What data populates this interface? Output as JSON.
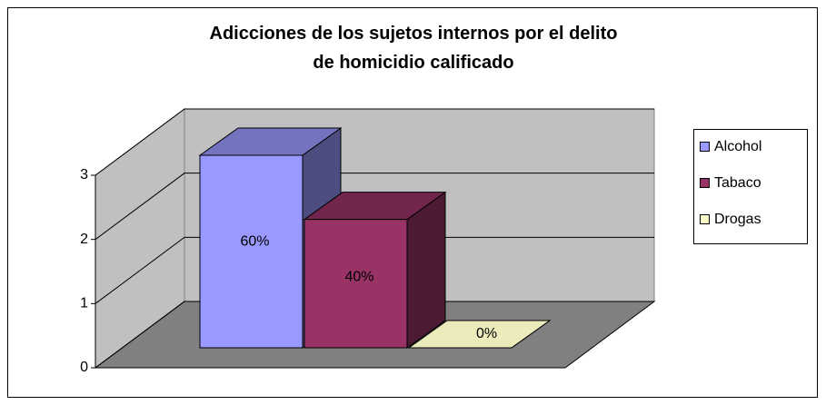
{
  "chart_data": {
    "type": "bar",
    "title": "Adicciones de los sujetos internos por el delito de homicidio calificado",
    "series": [
      {
        "name": "Alcohol",
        "color": "#9999ff",
        "values": [
          3
        ],
        "value_labels": [
          "60%"
        ]
      },
      {
        "name": "Tabaco",
        "color": "#993366",
        "values": [
          2
        ],
        "value_labels": [
          "40%"
        ]
      },
      {
        "name": "Drogas",
        "color": "#ffffcc",
        "values": [
          0
        ],
        "value_labels": [
          "0%"
        ]
      }
    ],
    "ylim": [
      0,
      3
    ],
    "yticks": [
      0,
      1,
      2,
      3
    ],
    "grid": true,
    "legend": "right"
  }
}
